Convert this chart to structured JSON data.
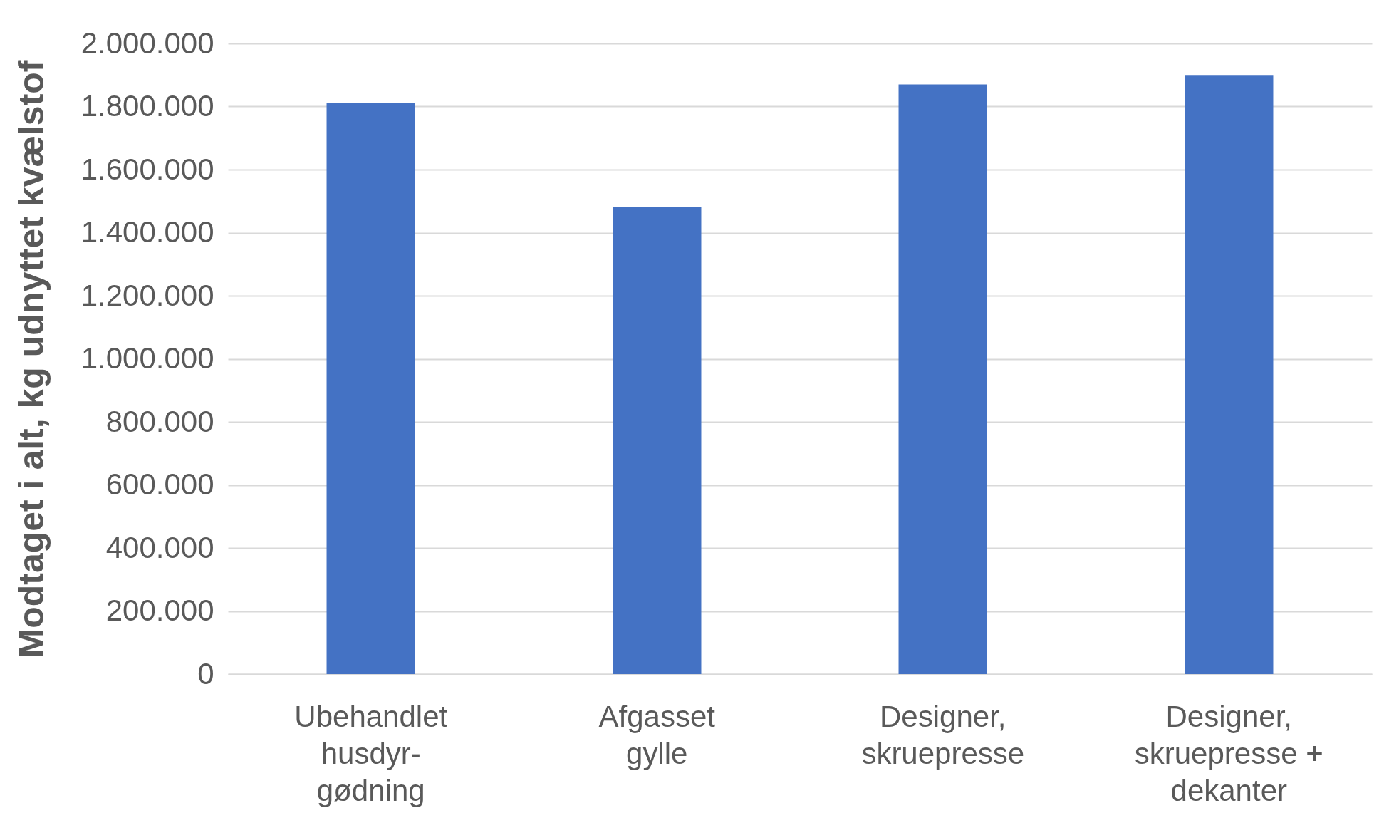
{
  "chart_data": {
    "type": "bar",
    "ylabel": "Modtaget i alt, kg  udnyttet kvælstof",
    "categories": [
      "Ubehandlet\nhusdyr-\ngødning",
      "Afgasset\ngylle",
      "Designer,\nskruepresse",
      "Designer,\nskruepresse +\ndekanter"
    ],
    "values": [
      1810000,
      1480000,
      1870000,
      1900000
    ],
    "color": "#4472c4",
    "ylim": [
      0,
      2000000
    ],
    "yticks": [
      {
        "value": 0,
        "label": "0"
      },
      {
        "value": 200000,
        "label": "200.000"
      },
      {
        "value": 400000,
        "label": "400.000"
      },
      {
        "value": 600000,
        "label": "600.000"
      },
      {
        "value": 800000,
        "label": "800.000"
      },
      {
        "value": 1000000,
        "label": "1.000.000"
      },
      {
        "value": 1200000,
        "label": "1.200.000"
      },
      {
        "value": 1400000,
        "label": "1.400.000"
      },
      {
        "value": 1600000,
        "label": "1.600.000"
      },
      {
        "value": 1800000,
        "label": "1.800.000"
      },
      {
        "value": 2000000,
        "label": "2.000.000"
      }
    ],
    "grid": "y"
  }
}
